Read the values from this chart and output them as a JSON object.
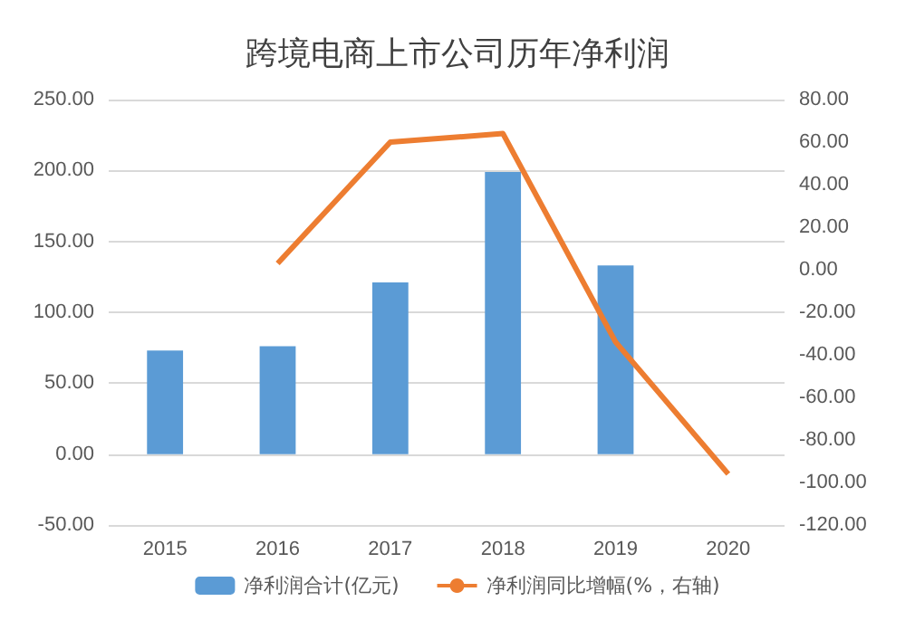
{
  "chart_data": {
    "type": "bar",
    "title": "跨境电商上市公司历年净利润",
    "categories": [
      "2015",
      "2016",
      "2017",
      "2018",
      "2019",
      "2020"
    ],
    "series": [
      {
        "name": "净利润合计(亿元)",
        "color": "#5b9bd5",
        "values": [
          73,
          76,
          121,
          199,
          133,
          null
        ]
      },
      {
        "name": "净利润同比增幅(%，右轴)",
        "type": "line",
        "axis": "y2",
        "color": "#ed7d31",
        "values": [
          null,
          3,
          60,
          64,
          -34,
          -96
        ]
      }
    ],
    "ylim": [
      -50,
      250
    ],
    "yticks": [
      {
        "value": -50,
        "label": "-50.00"
      },
      {
        "value": 0,
        "label": "0.00"
      },
      {
        "value": 50,
        "label": "50.00"
      },
      {
        "value": 100,
        "label": "100.00"
      },
      {
        "value": 150,
        "label": "150.00"
      },
      {
        "value": 200,
        "label": "200.00"
      },
      {
        "value": 250,
        "label": "250.00"
      }
    ],
    "y2lim": [
      -120,
      80
    ],
    "y2ticks": [
      {
        "value": -120,
        "label": "-120.00"
      },
      {
        "value": -100,
        "label": "-100.00"
      },
      {
        "value": -80,
        "label": "-80.00"
      },
      {
        "value": -60,
        "label": "-60.00"
      },
      {
        "value": -40,
        "label": "-40.00"
      },
      {
        "value": -20,
        "label": "-20.00"
      },
      {
        "value": 0,
        "label": "0.00"
      },
      {
        "value": 20,
        "label": "20.00"
      },
      {
        "value": 40,
        "label": "40.00"
      },
      {
        "value": 60,
        "label": "60.00"
      },
      {
        "value": 80,
        "label": "80.00"
      }
    ],
    "grid": "y",
    "legend": "bottom",
    "marker": "none"
  }
}
